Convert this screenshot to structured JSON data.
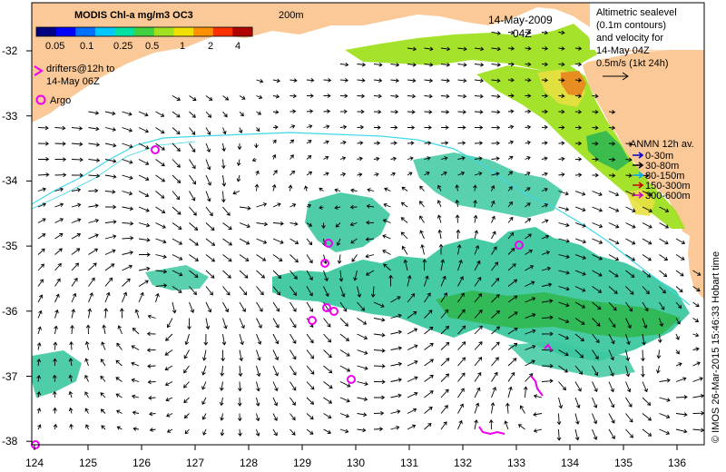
{
  "colorbar": {
    "title": "MODIS Chl-a mg/m3 OC3",
    "ticks": [
      "0.05",
      "0.1",
      "0.25",
      "0.5",
      "1",
      "2",
      "4"
    ],
    "colors": [
      "#000080",
      "#0000ff",
      "#0070ff",
      "#00c8ff",
      "#00e0a0",
      "#40d040",
      "#a0e020",
      "#f0e000",
      "#ff9000",
      "#ff3000",
      "#b00000"
    ]
  },
  "drifters_legend": {
    "line1": "drifters@12h to",
    "line2": "14-May 06Z"
  },
  "argo_legend": {
    "label": "Argo"
  },
  "date": {
    "line1": "14-May-2009",
    "line2": "04Z"
  },
  "isobath_label": "200m",
  "altimetry": {
    "line1": "Altimetric sealevel",
    "line2": "(0.1m contours)",
    "line3": "and velocity for",
    "line4": "14-May 04Z",
    "scale_label": "0.5m/s (1kt 24h)"
  },
  "anmn": {
    "title": "ANMN 12h av.",
    "depths": [
      {
        "label": "0-30m",
        "color": "#0000cc"
      },
      {
        "label": "30-80m",
        "color": "#000000"
      },
      {
        "label": "80-150m",
        "color": "#00a0ff"
      },
      {
        "label": "150-300m",
        "color": "#cc0000"
      },
      {
        "label": "300-600m",
        "color": "#cc00cc"
      }
    ]
  },
  "credit": "© IMOS 26-Mar-2015 15:46:33 Hobart time",
  "axes": {
    "x_ticks": [
      "124",
      "125",
      "126",
      "127",
      "128",
      "129",
      "130",
      "131",
      "132",
      "133",
      "134",
      "135",
      "136"
    ],
    "y_ticks": [
      "-32",
      "-33",
      "-34",
      "-35",
      "-36",
      "-37",
      "-38"
    ]
  },
  "colors": {
    "land": "#fbc998",
    "sea": "#ffffff",
    "chl_main": "#3cc8a0",
    "chl_green": "#30b850",
    "chl_high": "#a0e020",
    "chl_yellow": "#e8e040",
    "chl_orange": "#e88820",
    "argo": "#ee00ee",
    "drifter": "#ee00ee",
    "isobath": "#40d8e8",
    "arrow": "#000000"
  }
}
